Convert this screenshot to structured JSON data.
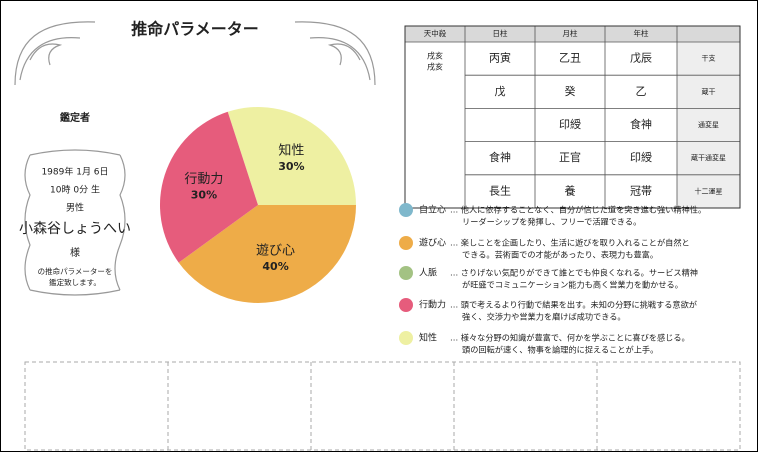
{
  "header": {
    "title": "推命パラメーター"
  },
  "profile": {
    "label": "鑑定者",
    "birth_date": "1989年 1月 6日",
    "birth_time": "10時 0分 生",
    "gender": "男性",
    "name": "小森谷しょうへい",
    "honorific": "様",
    "note": [
      "の推命パラメーターを",
      "鑑定致します。"
    ]
  },
  "chart_data": {
    "type": "pie",
    "categories": [
      "知性",
      "遊び心",
      "行動力"
    ],
    "values": [
      30,
      40,
      30
    ],
    "value_labels": [
      "30%",
      "40%",
      "30%"
    ],
    "colors": [
      "#eef0a2",
      "#eeac48",
      "#e65c7c"
    ]
  },
  "table": {
    "header": [
      "天中殺",
      "日柱",
      "月柱",
      "年柱",
      null
    ],
    "tenchusatsu": [
      "戌亥",
      "戌亥"
    ],
    "rows": [
      [
        "丙寅",
        "乙丑",
        "戊辰",
        "干支"
      ],
      [
        "戊",
        "癸",
        "乙",
        "蔵干"
      ],
      [
        null,
        "印綬",
        "食神",
        "通変星"
      ],
      [
        "食神",
        "正官",
        "印綬",
        "蔵干通変星"
      ],
      [
        "長生",
        "養",
        "冠帯",
        "十二運星"
      ]
    ]
  },
  "legend": [
    {
      "name": "自立心",
      "color": "#7fb8cc",
      "lines": [
        "… 他人に依存することなく、自分が信じた道を突き進む強い精神性。",
        "リーダーシップを発揮し、フリーで活躍できる。"
      ]
    },
    {
      "name": "遊び心",
      "color": "#eeac48",
      "lines": [
        "… 楽しことを企画したり、生活に遊びを取り入れることが自然と",
        "できる。芸術面での才能があったり、表現力も豊富。"
      ]
    },
    {
      "name": "人脈",
      "color": "#a3c283",
      "lines": [
        "… さりげない気配りができて誰とでも仲良くなれる。サービス精神",
        "が旺盛でコミュニケーション能力も高く営業力を動かせる。"
      ]
    },
    {
      "name": "行動力",
      "color": "#e65c7c",
      "lines": [
        "… 頭で考えるより行動で結果を出す。未知の分野に挑戦する意欲が",
        "強く、交渉力や営業力を磨けば成功できる。"
      ]
    },
    {
      "name": "知性",
      "color": "#eef0a2",
      "lines": [
        "… 様々な分野の知識が豊富で、何かを学ぶことに喜びを感じる。",
        "頭の回転が速く、物事を論理的に捉えることが上手。"
      ]
    }
  ]
}
